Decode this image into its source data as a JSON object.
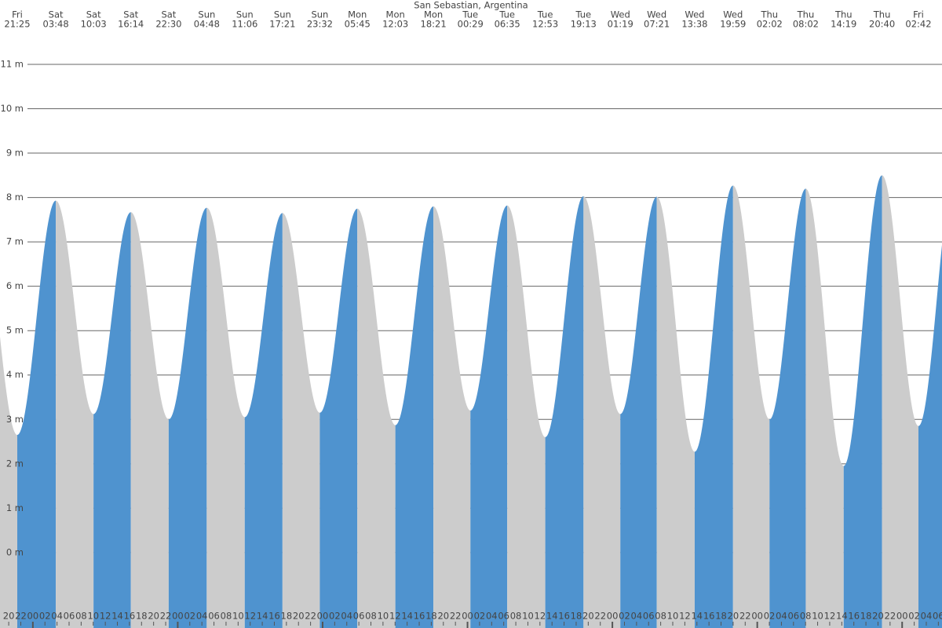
{
  "chart_data": {
    "type": "tide",
    "title": "San Sebastian, Argentina",
    "x": [
      [
        "Fri",
        "21:25"
      ],
      [
        "Sat",
        "03:48"
      ],
      [
        "Sat",
        "10:03"
      ],
      [
        "Sat",
        "16:14"
      ],
      [
        "Sat",
        "22:30"
      ],
      [
        "Sun",
        "04:48"
      ],
      [
        "Sun",
        "11:06"
      ],
      [
        "Sun",
        "17:21"
      ],
      [
        "Sun",
        "23:32"
      ],
      [
        "Mon",
        "05:45"
      ],
      [
        "Mon",
        "12:03"
      ],
      [
        "Mon",
        "18:21"
      ],
      [
        "Tue",
        "00:29"
      ],
      [
        "Tue",
        "06:35"
      ],
      [
        "Tue",
        "12:53"
      ],
      [
        "Tue",
        "19:13"
      ],
      [
        "Wed",
        "01:19"
      ],
      [
        "Wed",
        "07:21"
      ],
      [
        "Wed",
        "13:38"
      ],
      [
        "Wed",
        "19:59"
      ],
      [
        "Thu",
        "02:02"
      ],
      [
        "Thu",
        "08:02"
      ],
      [
        "Thu",
        "14:19"
      ],
      [
        "Thu",
        "20:40"
      ],
      [
        "Fri",
        "02:42"
      ]
    ],
    "values": [
      2.65,
      7.93,
      3.12,
      7.67,
      3.0,
      7.77,
      3.05,
      7.65,
      3.15,
      7.75,
      2.87,
      7.8,
      3.2,
      7.82,
      2.6,
      8.03,
      3.12,
      8.02,
      2.27,
      8.27,
      3.0,
      8.2,
      1.95,
      8.5,
      2.85
    ],
    "rising_color": "#4f93cf",
    "falling_color": "#cccccc",
    "ylim": [
      -1.7,
      12.45
    ],
    "yticks": [
      {
        "value": 0,
        "label": "0 m"
      },
      {
        "value": 1,
        "label": "1 m"
      },
      {
        "value": 2,
        "label": "2 m"
      },
      {
        "value": 3,
        "label": "3 m"
      },
      {
        "value": 4,
        "label": "4 m"
      },
      {
        "value": 5,
        "label": "5 m"
      },
      {
        "value": 6,
        "label": "6 m"
      },
      {
        "value": 7,
        "label": "7 m"
      },
      {
        "value": 8,
        "label": "8 m"
      },
      {
        "value": 9,
        "label": "9 m"
      },
      {
        "value": 10,
        "label": "10 m"
      },
      {
        "value": 11,
        "label": "11 m"
      }
    ],
    "grid": true,
    "hour_labels": [
      "20",
      "22",
      "00",
      "02",
      "04",
      "06",
      "08",
      "10",
      "12",
      "14",
      "16",
      "18",
      "20",
      "22",
      "00",
      "02",
      "04",
      "06",
      "08",
      "10",
      "12",
      "14",
      "16",
      "18",
      "20",
      "22",
      "00",
      "02",
      "04",
      "06",
      "08",
      "10",
      "12",
      "14",
      "16",
      "18",
      "20",
      "22",
      "00",
      "02",
      "04",
      "06",
      "08",
      "10",
      "12",
      "14",
      "16",
      "18",
      "20",
      "22",
      "00",
      "02",
      "04",
      "06",
      "08",
      "10",
      "12",
      "14",
      "16",
      "18",
      "20",
      "22",
      "00",
      "02",
      "04",
      "06",
      "08",
      "10",
      "12",
      "14",
      "16",
      "18",
      "20",
      "22",
      "00",
      "02",
      "04",
      "06"
    ]
  }
}
